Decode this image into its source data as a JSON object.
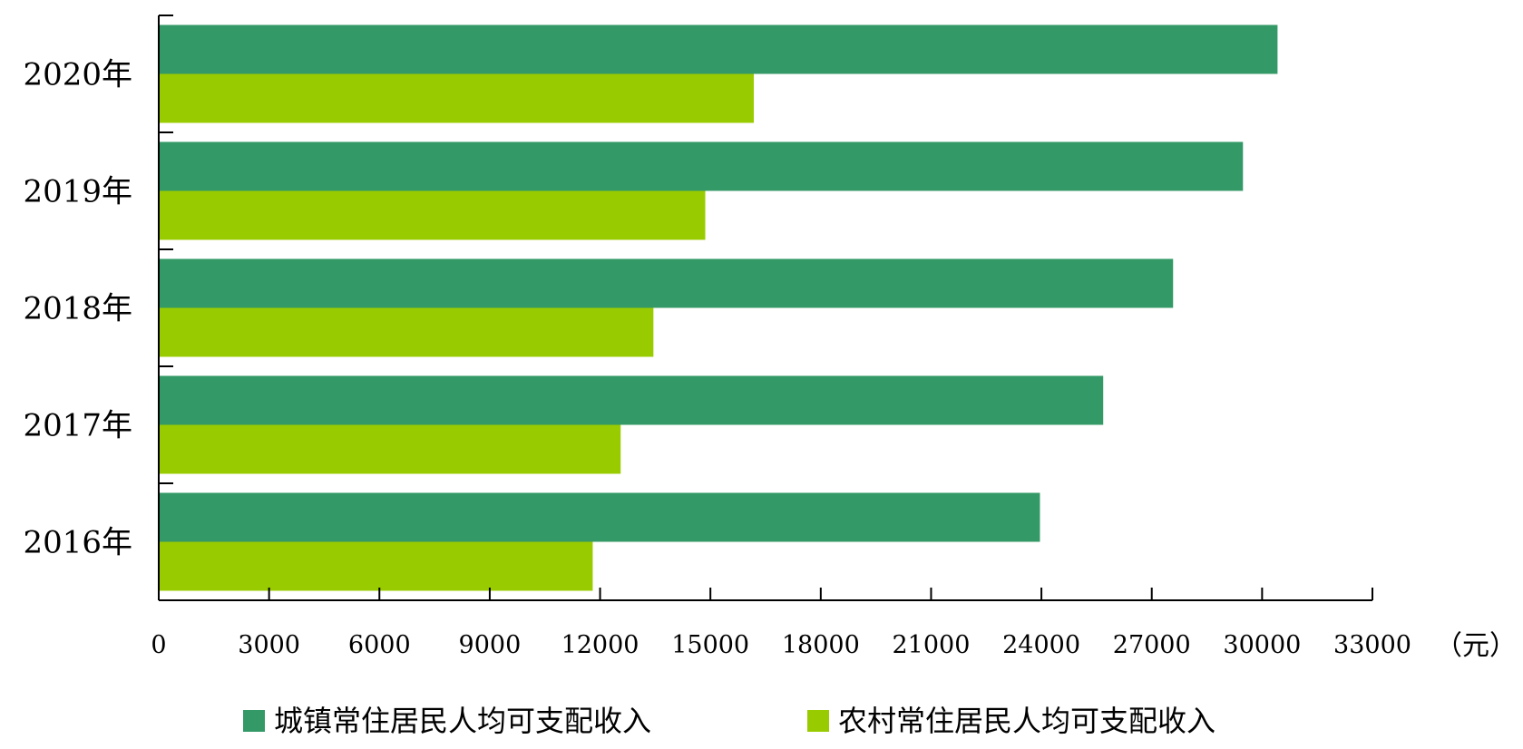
{
  "chart_data": {
    "type": "bar",
    "orientation": "horizontal",
    "categories": [
      "2020年",
      "2019年",
      "2018年",
      "2017年",
      "2016年"
    ],
    "series": [
      {
        "name": "城镇常住居民人均可支配收入",
        "color": "#339966",
        "values": [
          30420,
          29480,
          27580,
          25680,
          23960
        ]
      },
      {
        "name": "农村常住居民人均可支配收入",
        "color": "#99CC00",
        "values": [
          16180,
          14860,
          13450,
          12560,
          11800
        ]
      }
    ],
    "xlim": [
      0,
      33000
    ],
    "xticks": [
      "0",
      "3000",
      "6000",
      "9000",
      "12000",
      "15000",
      "18000",
      "21000",
      "24000",
      "27000",
      "30000",
      "33000"
    ],
    "unit_label": "（元）",
    "grid": false,
    "legend_position": "bottom"
  }
}
